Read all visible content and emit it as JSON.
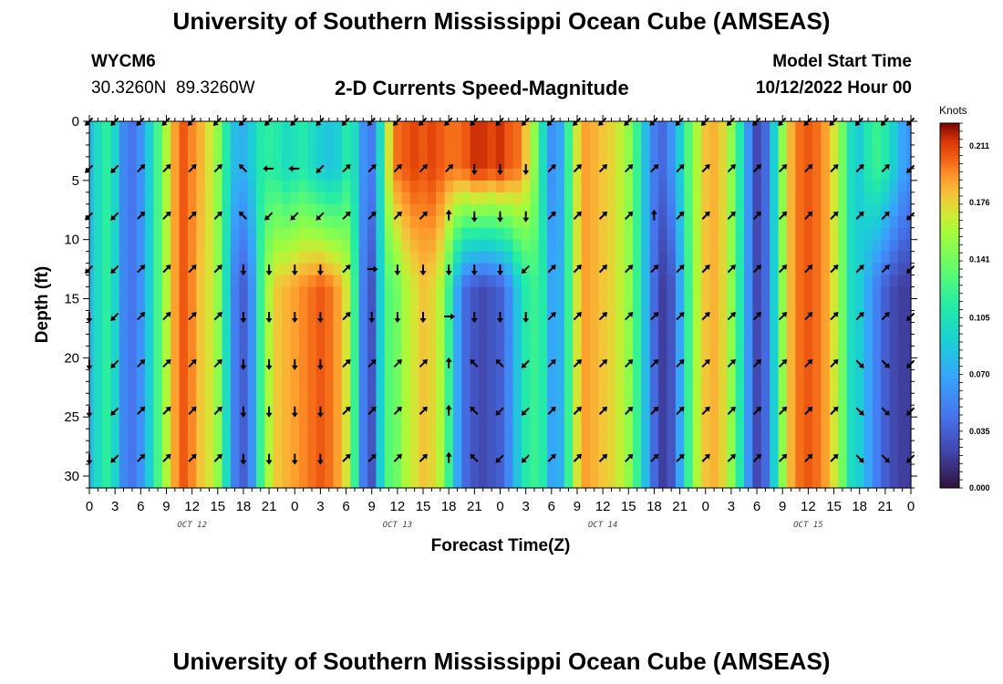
{
  "title": "University of Southern Mississippi Ocean Cube (AMSEAS)",
  "station": {
    "id": "WYCM6",
    "coords": "30.3260N  89.3260W"
  },
  "plot_title": "2-D Currents Speed-Magnitude",
  "model_start": {
    "label": "Model Start Time",
    "value": "10/12/2022 Hour 00"
  },
  "footer_title": "University of Southern Mississippi Ocean Cube (AMSEAS)",
  "chart_data": {
    "type": "heatmap",
    "title": "2-D Currents Speed-Magnitude",
    "xlabel": "Forecast Time(Z)",
    "ylabel": "Depth (ft)",
    "x_tick_labels": [
      "0",
      "3",
      "6",
      "9",
      "12",
      "15",
      "18",
      "21",
      "0",
      "3",
      "6",
      "9",
      "12",
      "15",
      "18",
      "21",
      "0",
      "3",
      "6",
      "9",
      "12",
      "15",
      "18",
      "21",
      "0",
      "3",
      "6",
      "9",
      "12",
      "15",
      "18",
      "21",
      "0"
    ],
    "day_labels": [
      "OCT 12",
      "OCT 13",
      "OCT 14",
      "OCT 15"
    ],
    "y_ticks": [
      0,
      5,
      10,
      15,
      20,
      25,
      30
    ],
    "ylim": [
      31,
      0
    ],
    "xlim_hours": [
      0,
      96
    ],
    "colorbar": {
      "unit": "Knots",
      "ticks": [
        "0.211",
        "0.176",
        "0.141",
        "0.105",
        "0.070",
        "0.035",
        "0.000"
      ],
      "range": [
        0,
        0.225
      ]
    },
    "column_profiles": [
      {
        "hour": 0,
        "surface": 0.08,
        "deep": 0.08
      },
      {
        "hour": 1,
        "surface": 0.1,
        "deep": 0.1
      },
      {
        "hour": 2,
        "surface": 0.115,
        "deep": 0.115
      },
      {
        "hour": 3,
        "surface": 0.095,
        "deep": 0.095
      },
      {
        "hour": 4,
        "surface": 0.055,
        "deep": 0.055
      },
      {
        "hour": 5,
        "surface": 0.045,
        "deep": 0.045
      },
      {
        "hour": 6,
        "surface": 0.06,
        "deep": 0.06
      },
      {
        "hour": 7,
        "surface": 0.09,
        "deep": 0.09
      },
      {
        "hour": 8,
        "surface": 0.125,
        "deep": 0.125
      },
      {
        "hour": 9,
        "surface": 0.16,
        "deep": 0.16
      },
      {
        "hour": 10,
        "surface": 0.19,
        "deep": 0.19
      },
      {
        "hour": 11,
        "surface": 0.205,
        "deep": 0.205
      },
      {
        "hour": 12,
        "surface": 0.195,
        "deep": 0.195
      },
      {
        "hour": 13,
        "surface": 0.185,
        "deep": 0.18
      },
      {
        "hour": 14,
        "surface": 0.17,
        "deep": 0.17
      },
      {
        "hour": 15,
        "surface": 0.15,
        "deep": 0.15
      },
      {
        "hour": 16,
        "surface": 0.11,
        "deep": 0.1
      },
      {
        "hour": 17,
        "surface": 0.08,
        "deep": 0.05
      },
      {
        "hour": 18,
        "surface": 0.075,
        "deep": 0.035
      },
      {
        "hour": 19,
        "surface": 0.09,
        "deep": 0.06
      },
      {
        "hour": 20,
        "surface": 0.11,
        "deep": 0.12
      },
      {
        "hour": 21,
        "surface": 0.115,
        "deep": 0.16
      },
      {
        "hour": 22,
        "surface": 0.11,
        "deep": 0.18
      },
      {
        "hour": 23,
        "surface": 0.1,
        "deep": 0.185
      },
      {
        "hour": 24,
        "surface": 0.105,
        "deep": 0.19
      },
      {
        "hour": 25,
        "surface": 0.11,
        "deep": 0.195
      },
      {
        "hour": 26,
        "surface": 0.1,
        "deep": 0.2
      },
      {
        "hour": 27,
        "surface": 0.09,
        "deep": 0.205
      },
      {
        "hour": 28,
        "surface": 0.085,
        "deep": 0.2
      },
      {
        "hour": 29,
        "surface": 0.09,
        "deep": 0.19
      },
      {
        "hour": 30,
        "surface": 0.11,
        "deep": 0.17
      },
      {
        "hour": 31,
        "surface": 0.1,
        "deep": 0.12
      },
      {
        "hour": 32,
        "surface": 0.06,
        "deep": 0.05
      },
      {
        "hour": 33,
        "surface": 0.05,
        "deep": 0.03
      },
      {
        "hour": 34,
        "surface": 0.1,
        "deep": 0.09
      },
      {
        "hour": 35,
        "surface": 0.17,
        "deep": 0.13
      },
      {
        "hour": 36,
        "surface": 0.2,
        "deep": 0.14
      },
      {
        "hour": 37,
        "surface": 0.205,
        "deep": 0.16
      },
      {
        "hour": 38,
        "surface": 0.21,
        "deep": 0.17
      },
      {
        "hour": 39,
        "surface": 0.205,
        "deep": 0.18
      },
      {
        "hour": 40,
        "surface": 0.21,
        "deep": 0.175
      },
      {
        "hour": 41,
        "surface": 0.205,
        "deep": 0.16
      },
      {
        "hour": 42,
        "surface": 0.2,
        "deep": 0.12
      },
      {
        "hour": 43,
        "surface": 0.2,
        "deep": 0.07
      },
      {
        "hour": 44,
        "surface": 0.205,
        "deep": 0.04
      },
      {
        "hour": 45,
        "surface": 0.215,
        "deep": 0.03
      },
      {
        "hour": 46,
        "surface": 0.215,
        "deep": 0.025
      },
      {
        "hour": 47,
        "surface": 0.21,
        "deep": 0.03
      },
      {
        "hour": 48,
        "surface": 0.215,
        "deep": 0.035
      },
      {
        "hour": 49,
        "surface": 0.205,
        "deep": 0.055
      },
      {
        "hour": 50,
        "surface": 0.2,
        "deep": 0.085
      },
      {
        "hour": 51,
        "surface": 0.18,
        "deep": 0.11
      },
      {
        "hour": 52,
        "surface": 0.15,
        "deep": 0.12
      },
      {
        "hour": 53,
        "surface": 0.1,
        "deep": 0.11
      },
      {
        "hour": 54,
        "surface": 0.06,
        "deep": 0.07
      },
      {
        "hour": 55,
        "surface": 0.07,
        "deep": 0.075
      },
      {
        "hour": 56,
        "surface": 0.12,
        "deep": 0.12
      },
      {
        "hour": 57,
        "surface": 0.17,
        "deep": 0.17
      },
      {
        "hour": 58,
        "surface": 0.19,
        "deep": 0.19
      },
      {
        "hour": 59,
        "surface": 0.185,
        "deep": 0.185
      },
      {
        "hour": 60,
        "surface": 0.18,
        "deep": 0.18
      },
      {
        "hour": 61,
        "surface": 0.175,
        "deep": 0.175
      },
      {
        "hour": 62,
        "surface": 0.165,
        "deep": 0.165
      },
      {
        "hour": 63,
        "surface": 0.15,
        "deep": 0.15
      },
      {
        "hour": 64,
        "surface": 0.12,
        "deep": 0.12
      },
      {
        "hour": 65,
        "surface": 0.08,
        "deep": 0.08
      },
      {
        "hour": 66,
        "surface": 0.05,
        "deep": 0.04
      },
      {
        "hour": 67,
        "surface": 0.04,
        "deep": 0.02
      },
      {
        "hour": 68,
        "surface": 0.06,
        "deep": 0.03
      },
      {
        "hour": 69,
        "surface": 0.09,
        "deep": 0.07
      },
      {
        "hour": 70,
        "surface": 0.13,
        "deep": 0.12
      },
      {
        "hour": 71,
        "surface": 0.16,
        "deep": 0.16
      },
      {
        "hour": 72,
        "surface": 0.18,
        "deep": 0.18
      },
      {
        "hour": 73,
        "surface": 0.185,
        "deep": 0.185
      },
      {
        "hour": 74,
        "surface": 0.175,
        "deep": 0.175
      },
      {
        "hour": 75,
        "surface": 0.15,
        "deep": 0.15
      },
      {
        "hour": 76,
        "surface": 0.11,
        "deep": 0.11
      },
      {
        "hour": 77,
        "surface": 0.06,
        "deep": 0.06
      },
      {
        "hour": 78,
        "surface": 0.025,
        "deep": 0.025
      },
      {
        "hour": 79,
        "surface": 0.04,
        "deep": 0.04
      },
      {
        "hour": 80,
        "surface": 0.09,
        "deep": 0.09
      },
      {
        "hour": 81,
        "surface": 0.15,
        "deep": 0.15
      },
      {
        "hour": 82,
        "surface": 0.185,
        "deep": 0.185
      },
      {
        "hour": 83,
        "surface": 0.2,
        "deep": 0.2
      },
      {
        "hour": 84,
        "surface": 0.205,
        "deep": 0.205
      },
      {
        "hour": 85,
        "surface": 0.2,
        "deep": 0.2
      },
      {
        "hour": 86,
        "surface": 0.19,
        "deep": 0.19
      },
      {
        "hour": 87,
        "surface": 0.17,
        "deep": 0.17
      },
      {
        "hour": 88,
        "surface": 0.14,
        "deep": 0.14
      },
      {
        "hour": 89,
        "surface": 0.1,
        "deep": 0.1
      },
      {
        "hour": 90,
        "surface": 0.09,
        "deep": 0.09
      },
      {
        "hour": 91,
        "surface": 0.11,
        "deep": 0.07
      },
      {
        "hour": 92,
        "surface": 0.12,
        "deep": 0.05
      },
      {
        "hour": 93,
        "surface": 0.11,
        "deep": 0.035
      },
      {
        "hour": 94,
        "surface": 0.09,
        "deep": 0.025
      },
      {
        "hour": 95,
        "surface": 0.07,
        "deep": 0.02
      },
      {
        "hour": 96,
        "surface": 0.06,
        "deep": 0.02
      }
    ],
    "vector_rows_depth_ft": [
      0,
      4,
      8,
      12.5,
      16.5,
      20.5,
      24.5,
      28.5
    ],
    "vector_directions_deg": [
      [
        225,
        225,
        225,
        225,
        225,
        225,
        225,
        225,
        225,
        225,
        225,
        225,
        225,
        225,
        225,
        225,
        225,
        225,
        225,
        225,
        225,
        225,
        225,
        225,
        225,
        225,
        225,
        225,
        225,
        225,
        225,
        225,
        225
      ],
      [
        225,
        225,
        45,
        45,
        45,
        45,
        315,
        270,
        270,
        225,
        45,
        45,
        45,
        45,
        45,
        180,
        180,
        180,
        45,
        45,
        45,
        45,
        45,
        45,
        45,
        45,
        45,
        45,
        45,
        45,
        45,
        45,
        225
      ],
      [
        225,
        225,
        45,
        45,
        45,
        45,
        315,
        225,
        225,
        225,
        45,
        45,
        45,
        45,
        0,
        180,
        180,
        180,
        45,
        45,
        45,
        45,
        0,
        45,
        45,
        45,
        45,
        45,
        45,
        45,
        45,
        45,
        225
      ],
      [
        225,
        225,
        45,
        45,
        45,
        45,
        180,
        180,
        180,
        180,
        45,
        90,
        180,
        180,
        180,
        180,
        180,
        225,
        45,
        45,
        45,
        45,
        45,
        45,
        45,
        45,
        45,
        45,
        45,
        45,
        45,
        45,
        225
      ],
      [
        180,
        225,
        45,
        45,
        45,
        45,
        180,
        180,
        180,
        180,
        45,
        180,
        180,
        180,
        90,
        180,
        180,
        180,
        45,
        45,
        45,
        45,
        45,
        45,
        45,
        45,
        45,
        45,
        45,
        45,
        45,
        45,
        225
      ],
      [
        180,
        225,
        45,
        45,
        45,
        45,
        180,
        180,
        180,
        180,
        45,
        45,
        45,
        45,
        0,
        315,
        315,
        225,
        45,
        45,
        45,
        45,
        45,
        45,
        45,
        45,
        45,
        45,
        45,
        45,
        135,
        135,
        225
      ],
      [
        180,
        225,
        45,
        45,
        45,
        45,
        180,
        180,
        180,
        180,
        45,
        45,
        45,
        45,
        0,
        315,
        225,
        225,
        45,
        45,
        45,
        45,
        45,
        45,
        45,
        45,
        45,
        45,
        45,
        45,
        135,
        135,
        225
      ],
      [
        180,
        225,
        45,
        45,
        45,
        45,
        180,
        180,
        180,
        180,
        45,
        45,
        45,
        45,
        0,
        315,
        225,
        225,
        45,
        45,
        45,
        45,
        45,
        45,
        45,
        45,
        45,
        45,
        45,
        45,
        135,
        135,
        225
      ]
    ]
  }
}
